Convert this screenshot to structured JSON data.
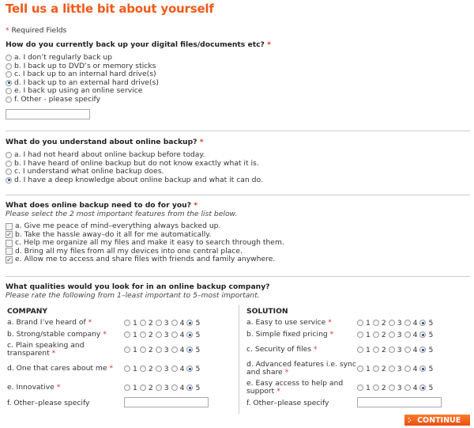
{
  "title": "Tell us a little bit about yourself",
  "required_note": "Required Fields",
  "required_mark": "*",
  "q1": {
    "question": "How do you currently back up your digital files/documents etc?",
    "options": [
      "a. I don’t regularly back up",
      "b. I back up to DVD’s or memory sticks",
      "c. I back up to an internal hard drive(s)",
      "d. I back up to an external hard drive(s)",
      "e. I back up using an online service",
      "f. Other - please specify"
    ],
    "selected": 3,
    "other_value": ""
  },
  "q2": {
    "question": "What do you understand about online backup?",
    "options": [
      "a. I had not heard about online backup before today.",
      "b. I have heard of online backup but do not know exactly what it is.",
      "c. I understand what online backup does.",
      "d. I have a deep knowledge about online backup and what it can do."
    ],
    "selected": 3
  },
  "q3": {
    "question": "What does online backup need to do for you?",
    "hint": "Please select the 2 most important features from the list below.",
    "options": [
      "a. Give me peace of mind–everything always backed up.",
      "b. Take the hassle away–do it all for me automatically.",
      "c. Help me organize all my files and make it easy to search through them.",
      "d. Bring all my files from all my devices into one central place.",
      "e. Allow me to access and share files with friends and family anywhere."
    ],
    "checked": [
      false,
      true,
      false,
      false,
      true
    ]
  },
  "q4": {
    "question": "What qualities would you look for in an online backup company?",
    "hint": "Please rate the following from 1–least important to 5–most important.",
    "scale": [
      "1",
      "2",
      "3",
      "4",
      "5"
    ],
    "company": {
      "heading": "COMPANY",
      "items": [
        {
          "label": "a. Brand I’ve heard of",
          "rating": 5
        },
        {
          "label": "b. Strong/stable company",
          "rating": 5
        },
        {
          "label": "c. Plain speaking and transparent",
          "rating": 5
        },
        {
          "label": "d. One that cares about me",
          "rating": 5
        },
        {
          "label": "e. Innovative",
          "rating": 5
        }
      ],
      "other_label": "f. Other–please specify",
      "other_value": ""
    },
    "solution": {
      "heading": "SOLUTION",
      "items": [
        {
          "label": "a. Easy to use service",
          "rating": 5
        },
        {
          "label": "b. Simple fixed pricing",
          "rating": 5
        },
        {
          "label": "c. Security of files",
          "rating": 5
        },
        {
          "label": "d. Advanced features i.e. sync and share",
          "rating": 5
        },
        {
          "label": "e. Easy access to help and support",
          "rating": 5
        }
      ],
      "other_label": "f. Other–please specify",
      "other_value": ""
    }
  },
  "continue_label": "CONTINUE",
  "colors": {
    "accent": "#f05a1a",
    "required": "#e03030"
  }
}
